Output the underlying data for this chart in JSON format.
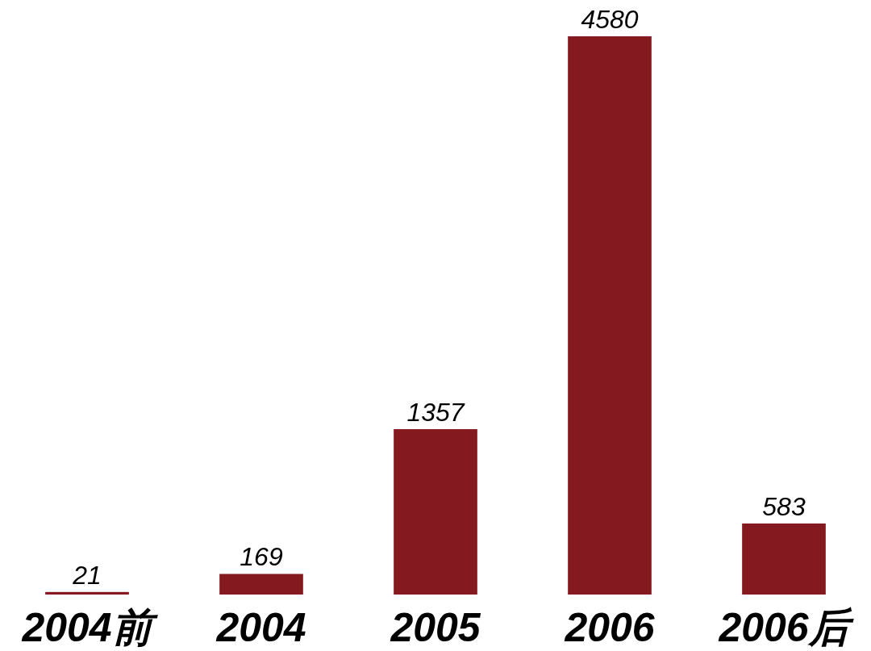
{
  "chart_data": {
    "type": "bar",
    "categories": [
      "2004前",
      "2004",
      "2005",
      "2006",
      "2006后"
    ],
    "values": [
      21,
      169,
      1357,
      4580,
      583
    ],
    "color": "#841a20",
    "data_labels": true
  }
}
